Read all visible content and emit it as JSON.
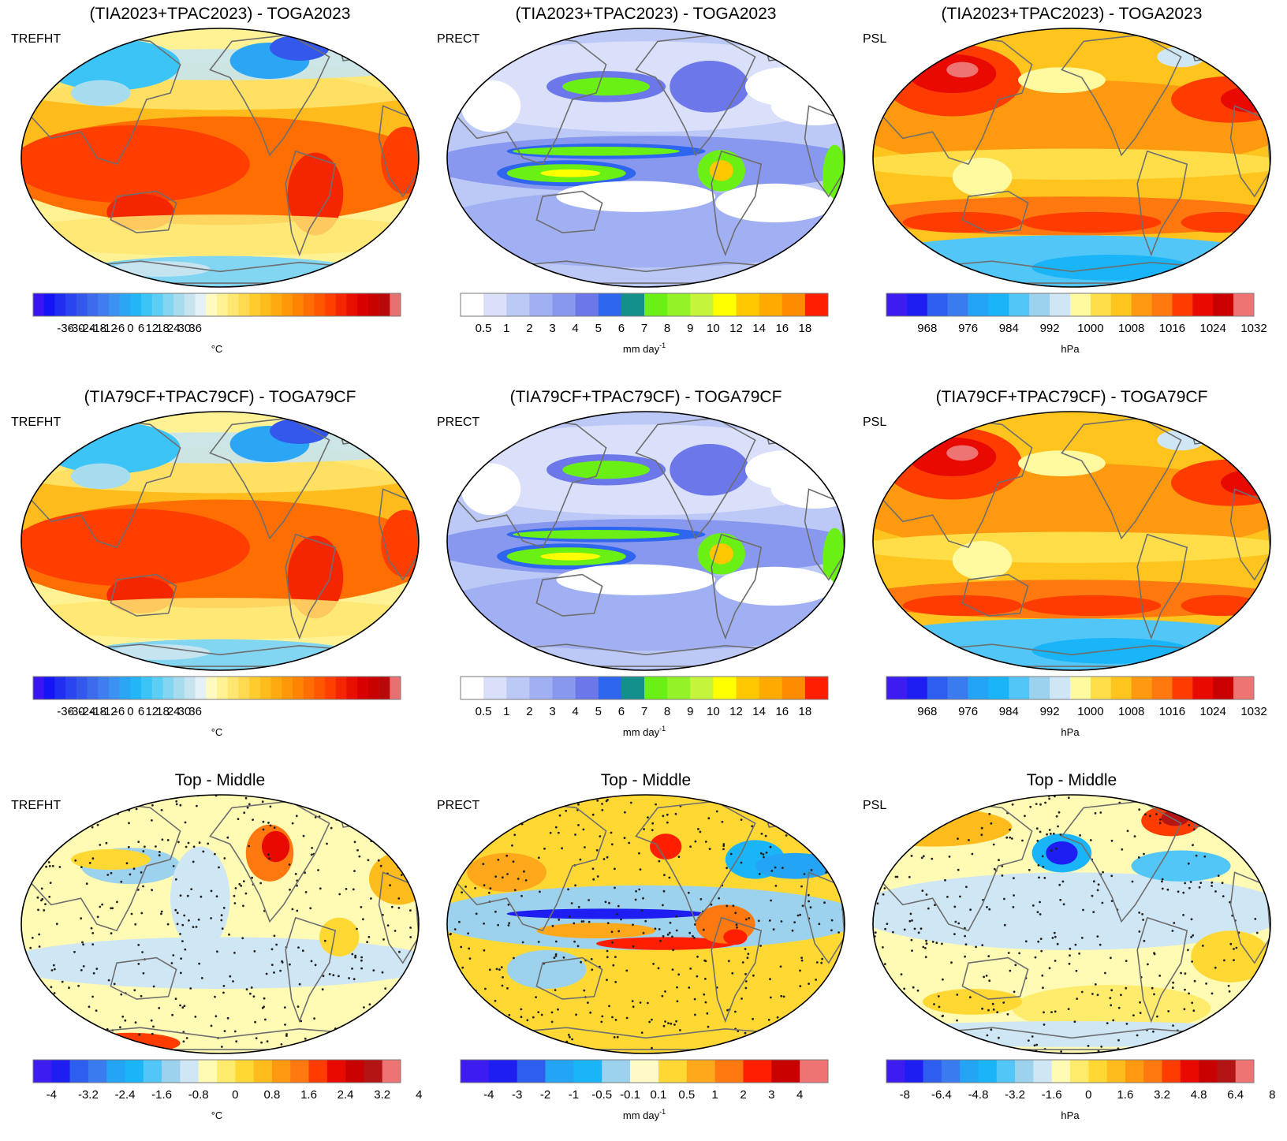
{
  "palettes": {
    "trefht_full": [
      "#3b14f0",
      "#1414f5",
      "#1f2ef0",
      "#2a44f0",
      "#3458ec",
      "#3c6cec",
      "#3f7ef0",
      "#3c92f2",
      "#2aa6f5",
      "#22b6f7",
      "#3cc4f7",
      "#5ccdf5",
      "#83d6f2",
      "#a6dcee",
      "#c6e4f0",
      "#e4f1f6",
      "#fffac0",
      "#fff294",
      "#ffe670",
      "#ffda50",
      "#ffcc30",
      "#ffbc1c",
      "#ffaa10",
      "#ff9808",
      "#ff8404",
      "#ff6e02",
      "#ff5600",
      "#ff3e00",
      "#f42600",
      "#e80e00",
      "#d80000",
      "#c80000",
      "#b80808",
      "#e87070"
    ],
    "prect_full": [
      "#ffffff",
      "#dae0fa",
      "#bcc8f6",
      "#a0b0f2",
      "#8898ee",
      "#6c78ea",
      "#2f66f0",
      "#12908c",
      "#6af014",
      "#94f228",
      "#c4f53c",
      "#ffff00",
      "#ffc800",
      "#ffaa00",
      "#ff8c00",
      "#ff1e00"
    ],
    "psl_full": [
      "#3c1cf0",
      "#1e1ef2",
      "#2e5ef0",
      "#3a7cf0",
      "#24a4f4",
      "#1ab4f8",
      "#52c6f6",
      "#9cd2ee",
      "#cfe6f4",
      "#fffaa0",
      "#ffde4a",
      "#ffc41e",
      "#ff9a10",
      "#ff7810",
      "#ff3c00",
      "#e80a00",
      "#c80000",
      "#ee7474"
    ],
    "trefht_diff": [
      "#3c1cf0",
      "#1e1ef2",
      "#2e5ef0",
      "#3a7cf0",
      "#24a4f4",
      "#1ab4f8",
      "#52c6f6",
      "#9cd2ee",
      "#cfe6f4",
      "#fffab4",
      "#ffec6c",
      "#ffd834",
      "#ffbc1c",
      "#ff9a10",
      "#ff7810",
      "#ff3c00",
      "#e80a00",
      "#c80000",
      "#b41414",
      "#ee7474"
    ],
    "prect_diff": [
      "#3c1cf0",
      "#1e1ef2",
      "#2e5ef0",
      "#24a4f4",
      "#1ab4f8",
      "#9cd2ee",
      "#fffac8",
      "#ffd834",
      "#ffa81c",
      "#ff7810",
      "#ff1e00",
      "#c80000",
      "#ee7474"
    ],
    "psl_diff": [
      "#3c1cf0",
      "#1e1ef2",
      "#2e5ef0",
      "#3a7cf0",
      "#24a4f4",
      "#1ab4f8",
      "#52c6f6",
      "#9cd2ee",
      "#cfe6f4",
      "#fffab4",
      "#ffec6c",
      "#ffd834",
      "#ffbc1c",
      "#ff9a10",
      "#ff7810",
      "#ff3c00",
      "#e80a00",
      "#c80000",
      "#b41414",
      "#ee7474"
    ]
  },
  "chart_data": [
    {
      "type": "heatmap",
      "title": "(TIA2023+TPAC2023) - TOGA2023",
      "variable": "TREFHT",
      "map": "t",
      "palette": "trefht_full",
      "colorbar_labels": [
        "-36",
        "-30",
        "-24",
        "-18",
        "-12",
        "-6",
        "0",
        "6",
        "12",
        "18",
        "24",
        "30",
        "36"
      ],
      "label_first_boundary": 3,
      "units": "°C"
    },
    {
      "type": "heatmap",
      "title": "(TIA2023+TPAC2023) - TOGA2023",
      "variable": "PRECT",
      "map": "p",
      "palette": "prect_full",
      "colorbar_labels": [
        "0.5",
        "1",
        "2",
        "3",
        "4",
        "5",
        "6",
        "7",
        "8",
        "9",
        "10",
        "12",
        "14",
        "16",
        "18"
      ],
      "label_first_boundary": 1,
      "units": "mm day",
      "units_sup": "-1"
    },
    {
      "type": "heatmap",
      "title": "(TIA2023+TPAC2023) - TOGA2023",
      "variable": "PSL",
      "map": "s",
      "palette": "psl_full",
      "colorbar_labels": [
        "968",
        "976",
        "984",
        "992",
        "1000",
        "1008",
        "1016",
        "1024",
        "1032"
      ],
      "label_first_boundary": 2,
      "label_step": 2,
      "units": "hPa"
    },
    {
      "type": "heatmap",
      "title": "(TIA79CF+TPAC79CF) - TOGA79CF",
      "variable": "TREFHT",
      "map": "t",
      "palette": "trefht_full",
      "colorbar_labels": [
        "-36",
        "-30",
        "-24",
        "-18",
        "-12",
        "-6",
        "0",
        "6",
        "12",
        "18",
        "24",
        "30",
        "36"
      ],
      "label_first_boundary": 3,
      "units": "°C"
    },
    {
      "type": "heatmap",
      "title": "(TIA79CF+TPAC79CF) - TOGA79CF",
      "variable": "PRECT",
      "map": "p",
      "palette": "prect_full",
      "colorbar_labels": [
        "0.5",
        "1",
        "2",
        "3",
        "4",
        "5",
        "6",
        "7",
        "8",
        "9",
        "10",
        "12",
        "14",
        "16",
        "18"
      ],
      "label_first_boundary": 1,
      "units": "mm day",
      "units_sup": "-1"
    },
    {
      "type": "heatmap",
      "title": "(TIA79CF+TPAC79CF) - TOGA79CF",
      "variable": "PSL",
      "map": "s",
      "palette": "psl_full",
      "colorbar_labels": [
        "968",
        "976",
        "984",
        "992",
        "1000",
        "1008",
        "1016",
        "1024",
        "1032"
      ],
      "label_first_boundary": 2,
      "label_step": 2,
      "units": "hPa"
    },
    {
      "type": "heatmap",
      "title": "Top - Middle",
      "variable": "TREFHT",
      "map": "dt",
      "palette": "trefht_diff",
      "colorbar_labels": [
        "-4",
        "-3.2",
        "-2.4",
        "-1.6",
        "-0.8",
        "0",
        "0.8",
        "1.6",
        "2.4",
        "3.2",
        "4"
      ],
      "label_first_boundary": 1,
      "label_step": 2,
      "units": "°C"
    },
    {
      "type": "heatmap",
      "title": "Top - Middle",
      "variable": "PRECT",
      "map": "dp",
      "palette": "prect_diff",
      "colorbar_labels": [
        "-4",
        "-3",
        "-2",
        "-1",
        "-0.5",
        "-0.1",
        "0.1",
        "0.5",
        "1",
        "2",
        "3",
        "4"
      ],
      "label_first_boundary": 1,
      "units": "mm day",
      "units_sup": "-1"
    },
    {
      "type": "heatmap",
      "title": "Top - Middle",
      "variable": "PSL",
      "map": "ds",
      "palette": "psl_diff",
      "colorbar_labels": [
        "-8",
        "-6.4",
        "-4.8",
        "-3.2",
        "-1.6",
        "0",
        "1.6",
        "3.2",
        "4.8",
        "6.4",
        "8"
      ],
      "label_first_boundary": 1,
      "label_step": 2,
      "units": "hPa"
    }
  ]
}
